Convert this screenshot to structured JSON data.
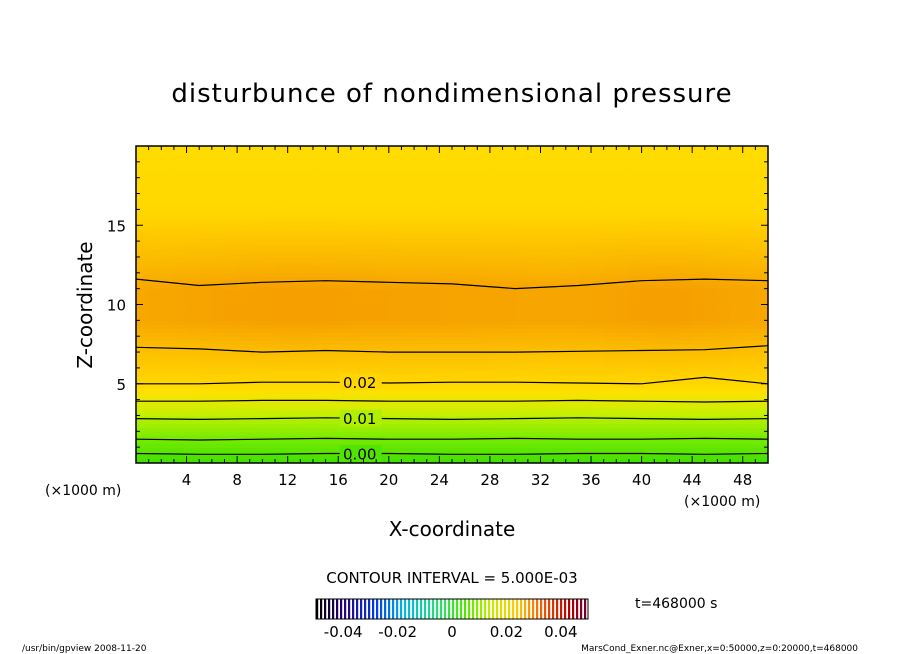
{
  "chart_data": {
    "type": "heatmap",
    "title": "disturbunce of nondimensional pressure",
    "xlabel": "X-coordinate",
    "ylabel": "Z-coordinate",
    "x_unit": "(×1000 m)",
    "z_unit": "(×1000 m)",
    "xlim": [
      0,
      50
    ],
    "ylim": [
      0,
      20
    ],
    "x_ticks": [
      4,
      8,
      12,
      16,
      20,
      24,
      28,
      32,
      36,
      40,
      44,
      48
    ],
    "y_ticks": [
      5,
      10,
      15
    ],
    "contour_interval_text": "CONTOUR INTERVAL = 5.000E-03",
    "contour_lines": [
      {
        "level": 0.0,
        "label": "0.00",
        "z": [
          0.6,
          0.55,
          0.55,
          0.6,
          0.6,
          0.55,
          0.55,
          0.6,
          0.6,
          0.55,
          0.6
        ]
      },
      {
        "level": 0.005,
        "label": "",
        "z": [
          1.5,
          1.45,
          1.5,
          1.55,
          1.5,
          1.5,
          1.55,
          1.5,
          1.5,
          1.55,
          1.5
        ]
      },
      {
        "level": 0.01,
        "label": "0.01",
        "z": [
          2.8,
          2.75,
          2.8,
          2.85,
          2.8,
          2.75,
          2.8,
          2.85,
          2.8,
          2.75,
          2.8
        ]
      },
      {
        "level": 0.015,
        "label": "",
        "z": [
          3.9,
          3.9,
          3.95,
          3.95,
          3.9,
          3.9,
          3.9,
          3.95,
          3.9,
          3.85,
          3.9
        ]
      },
      {
        "level": 0.02,
        "label": "0.02",
        "z": [
          5.0,
          5.0,
          5.1,
          5.1,
          5.05,
          5.1,
          5.1,
          5.05,
          5.0,
          5.4,
          5.0
        ]
      },
      {
        "level": 0.025,
        "label": "",
        "z": [
          7.3,
          7.2,
          7.0,
          7.1,
          7.0,
          7.0,
          7.0,
          7.05,
          7.1,
          7.15,
          7.4
        ]
      },
      {
        "level": 0.025,
        "label": "",
        "z": [
          11.6,
          11.2,
          11.4,
          11.5,
          11.4,
          11.3,
          11.0,
          11.2,
          11.5,
          11.6,
          11.5
        ]
      }
    ],
    "contour_x": [
      0,
      5,
      10,
      15,
      20,
      25,
      30,
      35,
      40,
      45,
      50
    ],
    "colorbar": {
      "ticks": [
        "-0.04",
        "-0.02",
        "0",
        "0.02",
        "0.04"
      ],
      "min": -0.05,
      "max": 0.05
    },
    "time_text": "t=468000 s"
  },
  "footer": {
    "left": "/usr/bin/gpview   2008-11-20",
    "right": "MarsCond_Exner.nc@Exner,x=0:50000,z=0:20000,t=468000"
  },
  "colors": {
    "green": "#32e600",
    "yellow": "#ffdc00",
    "orange": "#f5a000"
  }
}
